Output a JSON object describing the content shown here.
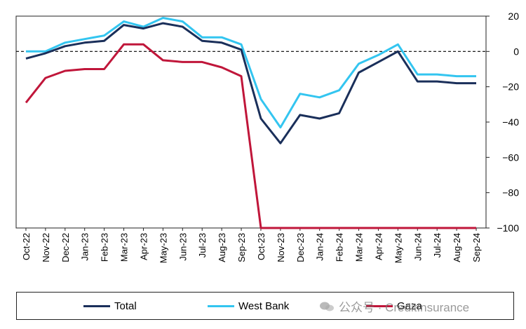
{
  "chart_data": {
    "type": "line",
    "categories": [
      "Oct-22",
      "Nov-22",
      "Dec-22",
      "Jan-23",
      "Feb-23",
      "Mar-23",
      "Apr-23",
      "May-23",
      "Jun-23",
      "Jul-23",
      "Aug-23",
      "Sep-23",
      "Oct-23",
      "Nov-23",
      "Dec-23",
      "Jan-24",
      "Feb-24",
      "Mar-24",
      "Apr-24",
      "May-24",
      "Jun-24",
      "Jul-24",
      "Aug-24",
      "Sep-24"
    ],
    "series": [
      {
        "name": "Total",
        "color": "#1a2f5a",
        "values": [
          -4,
          -1,
          3,
          5,
          6,
          15,
          13,
          16,
          14,
          6,
          5,
          1,
          -38,
          -52,
          -36,
          -38,
          -35,
          -12,
          -6,
          0,
          -17,
          -17,
          -18,
          -18
        ]
      },
      {
        "name": "West Bank",
        "color": "#33c5f0",
        "values": [
          0,
          0,
          5,
          7,
          9,
          17,
          14,
          19,
          17,
          8,
          8,
          4,
          -27,
          -43,
          -24,
          -26,
          -22,
          -7,
          -2,
          4,
          -13,
          -13,
          -14,
          -14
        ]
      },
      {
        "name": "Gaza",
        "color": "#c0163a",
        "values": [
          -29,
          -15,
          -11,
          -10,
          -10,
          4,
          4,
          -5,
          -6,
          -6,
          -9,
          -14,
          -100,
          -100,
          -100,
          -100,
          -100,
          -100,
          -100,
          -100,
          -100,
          -100,
          -100,
          -100
        ]
      }
    ],
    "yticks": [
      20,
      0,
      -20,
      -40,
      -60,
      -80,
      -100
    ],
    "ytick_labels": [
      "20",
      "0",
      "−20",
      "−40",
      "−60",
      "−80",
      "−100"
    ],
    "ylim": [
      -100,
      20
    ],
    "y_axis_side": "right",
    "reference_line": {
      "value": 0,
      "style": "dashed"
    },
    "grid": false,
    "legend_position": "bottom"
  },
  "watermark": {
    "text": "公众号 · CreditInsurance"
  }
}
